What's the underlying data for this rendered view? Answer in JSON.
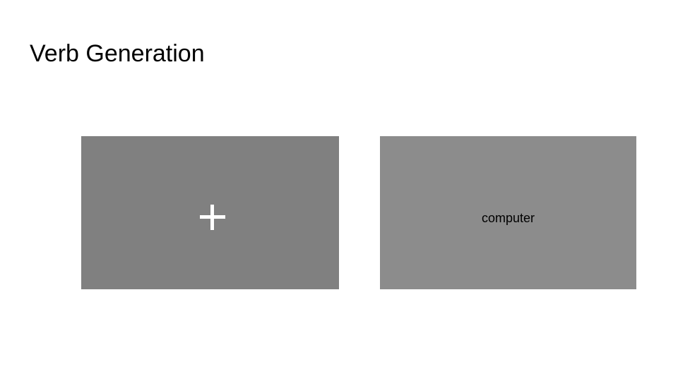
{
  "slide": {
    "title": "Verb Generation"
  },
  "fixation_panel": {
    "icon": "plus-icon",
    "background": "#808080",
    "cross_color": "#ffffff"
  },
  "stimulus_panel": {
    "word": "computer",
    "background": "#8c8c8c"
  }
}
